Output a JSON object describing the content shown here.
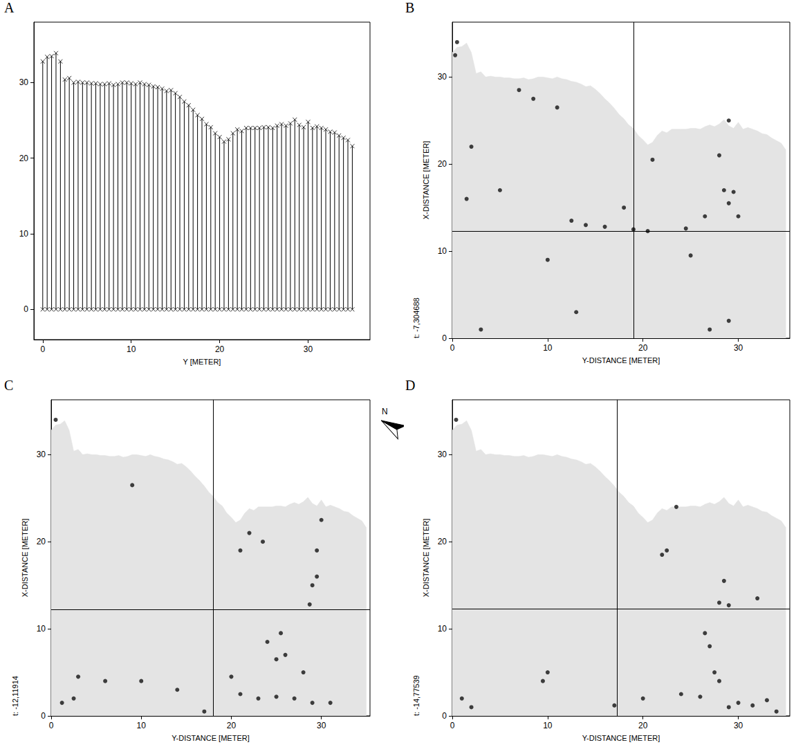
{
  "north_arrow": {
    "label": "N"
  },
  "chart_data": [
    {
      "panel": "A",
      "type": "stem",
      "xlabel": "Y [METER]",
      "color": "#000000",
      "marker": "x",
      "grid": false,
      "baseline": 0,
      "x": [
        0,
        0.5,
        1,
        1.5,
        2,
        2.5,
        3,
        3.5,
        4,
        4.5,
        5,
        5.5,
        6,
        6.5,
        7,
        7.5,
        8,
        8.5,
        9,
        9.5,
        10,
        10.5,
        11,
        11.5,
        12,
        12.5,
        13,
        13.5,
        14,
        14.5,
        15,
        15.5,
        16,
        16.5,
        17,
        17.5,
        18,
        18.5,
        19,
        19.5,
        20,
        20.5,
        21,
        21.5,
        22,
        22.5,
        23,
        23.5,
        24,
        24.5,
        25,
        25.5,
        26,
        26.5,
        27,
        27.5,
        28,
        28.5,
        29,
        29.5,
        30,
        30.5,
        31,
        31.5,
        32,
        32.5,
        33,
        33.5,
        34,
        34.5,
        35
      ],
      "values": [
        32.8,
        33.4,
        33.5,
        33.9,
        32.8,
        30.4,
        30.6,
        30.0,
        30.1,
        30.0,
        30.0,
        29.9,
        29.9,
        29.8,
        29.8,
        29.9,
        29.7,
        29.8,
        30.0,
        30.0,
        29.9,
        29.8,
        30.0,
        29.8,
        29.7,
        29.5,
        29.4,
        29.2,
        28.9,
        29.0,
        28.6,
        28.1,
        27.5,
        27.0,
        26.4,
        25.7,
        25.2,
        24.5,
        24.1,
        23.3,
        22.8,
        22.2,
        22.5,
        23.3,
        23.8,
        23.6,
        24.0,
        24.0,
        24.0,
        24.0,
        24.1,
        24.1,
        24.0,
        24.3,
        24.5,
        24.3,
        24.6,
        25.1,
        24.4,
        24.1,
        24.8,
        24.0,
        24.2,
        24.0,
        23.8,
        23.5,
        23.4,
        23.0,
        22.7,
        22.4,
        21.6
      ],
      "xlim": [
        -1,
        37
      ],
      "ylim": [
        -4,
        38
      ],
      "xticks": [
        0,
        10,
        20,
        30
      ],
      "yticks": [
        0,
        10,
        20,
        30
      ]
    },
    {
      "panel": "B",
      "type": "scatter",
      "annotation": "t: -7,304688",
      "xlabel": "Y-DISTANCE [METER]",
      "ylabel": "X-DISTANCE [METER]",
      "color": "#111111",
      "grid": false,
      "xlim": [
        0,
        35.4
      ],
      "ylim": [
        0,
        36.3
      ],
      "xticks": [
        0,
        10,
        20,
        30
      ],
      "yticks": [
        0,
        10,
        20,
        30
      ],
      "outline": {
        "color": "#e4e4e4",
        "x": [
          0,
          0.5,
          1,
          1.5,
          2,
          2.5,
          3,
          3.5,
          4,
          4.5,
          5,
          5.5,
          6,
          6.5,
          7,
          7.5,
          8,
          8.5,
          9,
          9.5,
          10,
          10.5,
          11,
          11.5,
          12,
          12.5,
          13,
          13.5,
          14,
          14.5,
          15,
          15.5,
          16,
          16.5,
          17,
          17.5,
          18,
          18.5,
          19,
          19.5,
          20,
          20.5,
          21,
          21.5,
          22,
          22.5,
          23,
          23.5,
          24,
          24.5,
          25,
          25.5,
          26,
          26.5,
          27,
          27.5,
          28,
          28.5,
          29,
          29.5,
          30,
          30.5,
          31,
          31.5,
          32,
          32.5,
          33,
          33.5,
          34,
          34.5,
          35
        ],
        "values": [
          32.8,
          33.4,
          33.5,
          33.9,
          32.8,
          30.4,
          30.6,
          30.0,
          30.1,
          30.0,
          30.0,
          29.9,
          29.9,
          29.8,
          29.8,
          29.9,
          29.7,
          29.8,
          30.0,
          30.0,
          29.9,
          29.8,
          30.0,
          29.8,
          29.7,
          29.5,
          29.4,
          29.2,
          28.9,
          29.0,
          28.6,
          28.1,
          27.5,
          27.0,
          26.4,
          25.7,
          25.2,
          24.5,
          24.1,
          23.3,
          22.8,
          22.2,
          22.5,
          23.3,
          23.8,
          23.6,
          24.0,
          24.0,
          24.0,
          24.0,
          24.1,
          24.1,
          24.0,
          24.3,
          24.5,
          24.3,
          24.6,
          25.1,
          24.4,
          24.1,
          24.8,
          24.0,
          24.2,
          24.0,
          23.8,
          23.5,
          23.4,
          23.0,
          22.7,
          22.4,
          21.6
        ]
      },
      "crosshair": {
        "y_distance": 19,
        "x_distance": 12.3
      },
      "points": [
        [
          0.5,
          34
        ],
        [
          0.3,
          32.5
        ],
        [
          2,
          22
        ],
        [
          1.5,
          16
        ],
        [
          12.5,
          13.5
        ],
        [
          14,
          13
        ],
        [
          16,
          12.8
        ],
        [
          19,
          12.5
        ],
        [
          20.5,
          12.3
        ],
        [
          24.5,
          12.6
        ],
        [
          25,
          9.5
        ],
        [
          28,
          21
        ],
        [
          29,
          25
        ],
        [
          28.5,
          17
        ],
        [
          29.5,
          16.8
        ],
        [
          29,
          15.5
        ],
        [
          30,
          14
        ],
        [
          8.5,
          27.5
        ],
        [
          7,
          28.5
        ],
        [
          11,
          26.5
        ],
        [
          5,
          17
        ],
        [
          10,
          9
        ],
        [
          13,
          3
        ],
        [
          27,
          1
        ],
        [
          29,
          2
        ],
        [
          3,
          1
        ],
        [
          18,
          15
        ],
        [
          21,
          20.5
        ],
        [
          26.5,
          14
        ]
      ]
    },
    {
      "panel": "C",
      "type": "scatter",
      "annotation": "t: -12,11914",
      "xlabel": "Y-DISTANCE [METER]",
      "ylabel": "X-DISTANCE [METER]",
      "color": "#111111",
      "grid": false,
      "xlim": [
        0,
        35.4
      ],
      "ylim": [
        0,
        36.3
      ],
      "xticks": [
        0,
        10,
        20,
        30
      ],
      "yticks": [
        0,
        10,
        20,
        30
      ],
      "outline": {
        "color": "#e4e4e4",
        "x": [
          0,
          0.5,
          1,
          1.5,
          2,
          2.5,
          3,
          3.5,
          4,
          4.5,
          5,
          5.5,
          6,
          6.5,
          7,
          7.5,
          8,
          8.5,
          9,
          9.5,
          10,
          10.5,
          11,
          11.5,
          12,
          12.5,
          13,
          13.5,
          14,
          14.5,
          15,
          15.5,
          16,
          16.5,
          17,
          17.5,
          18,
          18.5,
          19,
          19.5,
          20,
          20.5,
          21,
          21.5,
          22,
          22.5,
          23,
          23.5,
          24,
          24.5,
          25,
          25.5,
          26,
          26.5,
          27,
          27.5,
          28,
          28.5,
          29,
          29.5,
          30,
          30.5,
          31,
          31.5,
          32,
          32.5,
          33,
          33.5,
          34,
          34.5,
          35
        ],
        "values": [
          32.8,
          33.4,
          33.5,
          33.9,
          32.8,
          30.4,
          30.6,
          30.0,
          30.1,
          30.0,
          30.0,
          29.9,
          29.9,
          29.8,
          29.8,
          29.9,
          29.7,
          29.8,
          30.0,
          30.0,
          29.9,
          29.8,
          30.0,
          29.8,
          29.7,
          29.5,
          29.4,
          29.2,
          28.9,
          29.0,
          28.6,
          28.1,
          27.5,
          27.0,
          26.4,
          25.7,
          25.2,
          24.5,
          24.1,
          23.3,
          22.8,
          22.2,
          22.5,
          23.3,
          23.8,
          23.6,
          24.0,
          24.0,
          24.0,
          24.0,
          24.1,
          24.1,
          24.0,
          24.3,
          24.5,
          24.3,
          24.6,
          25.1,
          24.4,
          24.1,
          24.8,
          24.0,
          24.2,
          24.0,
          23.8,
          23.5,
          23.4,
          23.0,
          22.7,
          22.4,
          21.6
        ]
      },
      "crosshair": {
        "y_distance": 18,
        "x_distance": 12.2
      },
      "points": [
        [
          0.5,
          34
        ],
        [
          1.2,
          1.5
        ],
        [
          2.5,
          2
        ],
        [
          3,
          4.5
        ],
        [
          6,
          4
        ],
        [
          14,
          3
        ],
        [
          20,
          4.5
        ],
        [
          21,
          2.5
        ],
        [
          23,
          2
        ],
        [
          25,
          2.2
        ],
        [
          27,
          2
        ],
        [
          29,
          1.5
        ],
        [
          31,
          1.5
        ],
        [
          30,
          22.5
        ],
        [
          29.5,
          19
        ],
        [
          29.5,
          16
        ],
        [
          29,
          15
        ],
        [
          28.7,
          12.8
        ],
        [
          25.5,
          9.5
        ],
        [
          24,
          8.5
        ],
        [
          26,
          7
        ],
        [
          25,
          6.5
        ],
        [
          28,
          5
        ],
        [
          22,
          21
        ],
        [
          21,
          19
        ],
        [
          23.5,
          20
        ],
        [
          17,
          0.5
        ],
        [
          10,
          4
        ],
        [
          9,
          26.5
        ]
      ]
    },
    {
      "panel": "D",
      "type": "scatter",
      "annotation": "t: -14,77539",
      "xlabel": "Y-DISTANCE [METER]",
      "ylabel": "X-DISTANCE [METER]",
      "color": "#111111",
      "grid": false,
      "xlim": [
        0,
        35.4
      ],
      "ylim": [
        0,
        36.3
      ],
      "xticks": [
        0,
        10,
        20,
        30
      ],
      "yticks": [
        0,
        10,
        20,
        30
      ],
      "outline": {
        "color": "#e4e4e4",
        "x": [
          0,
          0.5,
          1,
          1.5,
          2,
          2.5,
          3,
          3.5,
          4,
          4.5,
          5,
          5.5,
          6,
          6.5,
          7,
          7.5,
          8,
          8.5,
          9,
          9.5,
          10,
          10.5,
          11,
          11.5,
          12,
          12.5,
          13,
          13.5,
          14,
          14.5,
          15,
          15.5,
          16,
          16.5,
          17,
          17.5,
          18,
          18.5,
          19,
          19.5,
          20,
          20.5,
          21,
          21.5,
          22,
          22.5,
          23,
          23.5,
          24,
          24.5,
          25,
          25.5,
          26,
          26.5,
          27,
          27.5,
          28,
          28.5,
          29,
          29.5,
          30,
          30.5,
          31,
          31.5,
          32,
          32.5,
          33,
          33.5,
          34,
          34.5,
          35
        ],
        "values": [
          32.8,
          33.4,
          33.5,
          33.9,
          32.8,
          30.4,
          30.6,
          30.0,
          30.1,
          30.0,
          30.0,
          29.9,
          29.9,
          29.8,
          29.8,
          29.9,
          29.7,
          29.8,
          30.0,
          30.0,
          29.9,
          29.8,
          30.0,
          29.8,
          29.7,
          29.5,
          29.4,
          29.2,
          28.9,
          29.0,
          28.6,
          28.1,
          27.5,
          27.0,
          26.4,
          25.7,
          25.2,
          24.5,
          24.1,
          23.3,
          22.8,
          22.2,
          22.5,
          23.3,
          23.8,
          23.6,
          24.0,
          24.0,
          24.0,
          24.0,
          24.1,
          24.1,
          24.0,
          24.3,
          24.5,
          24.3,
          24.6,
          25.1,
          24.4,
          24.1,
          24.8,
          24.0,
          24.2,
          24.0,
          23.8,
          23.5,
          23.4,
          23.0,
          22.7,
          22.4,
          21.6
        ]
      },
      "crosshair": {
        "y_distance": 17.3,
        "x_distance": 12.3
      },
      "points": [
        [
          0.4,
          34
        ],
        [
          1,
          2
        ],
        [
          2,
          1
        ],
        [
          10,
          5
        ],
        [
          9.5,
          4
        ],
        [
          22.5,
          19
        ],
        [
          22,
          18.5
        ],
        [
          28.5,
          15.5
        ],
        [
          28,
          13
        ],
        [
          29,
          12.7
        ],
        [
          26.5,
          9.5
        ],
        [
          27.5,
          5
        ],
        [
          28,
          4
        ],
        [
          24,
          2.5
        ],
        [
          26,
          2.2
        ],
        [
          30,
          1.5
        ],
        [
          31.5,
          1.2
        ],
        [
          33,
          1.8
        ],
        [
          29,
          1
        ],
        [
          20,
          2
        ],
        [
          17,
          1.2
        ],
        [
          34,
          0.5
        ],
        [
          23.5,
          24
        ],
        [
          27,
          8
        ],
        [
          32,
          13.5
        ]
      ]
    }
  ]
}
